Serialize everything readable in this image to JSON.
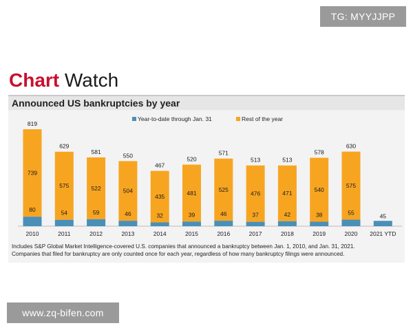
{
  "watermarks": {
    "top": "TG: MYYJJPP",
    "bottom": "www.zq-bifen.com"
  },
  "brand": {
    "part1": "Chart",
    "part2": " Watch"
  },
  "colors": {
    "brand_red": "#c8102e",
    "ytd_blue": "#4a8fb8",
    "rest_orange": "#f7a521"
  },
  "footnote": {
    "line1": "Includes S&P Global Market Intelligence-covered U.S. companies that announced a bankruptcy between Jan. 1, 2010, and Jan. 31, 2021.",
    "line2": "Companies that filed for bankruptcy are only counted once for each year, regardless of how many bankruptcy filings were announced."
  },
  "chart_data": {
    "type": "bar",
    "stacked": true,
    "title": "Announced US bankruptcies by year",
    "categories": [
      "2010",
      "2011",
      "2012",
      "2013",
      "2014",
      "2015",
      "2016",
      "2017",
      "2018",
      "2019",
      "2020",
      "2021 YTD"
    ],
    "series": [
      {
        "name": "Year-to-date through Jan. 31",
        "values": [
          80,
          54,
          59,
          46,
          32,
          39,
          46,
          37,
          42,
          38,
          55,
          45
        ]
      },
      {
        "name": "Rest of the year",
        "values": [
          739,
          575,
          522,
          504,
          435,
          481,
          525,
          476,
          471,
          540,
          575,
          0
        ]
      }
    ],
    "totals": [
      819,
      629,
      581,
      550,
      467,
      520,
      571,
      513,
      513,
      578,
      630,
      45
    ],
    "ylim": [
      0,
      819
    ],
    "grid": false,
    "legend_position": "top-center"
  }
}
